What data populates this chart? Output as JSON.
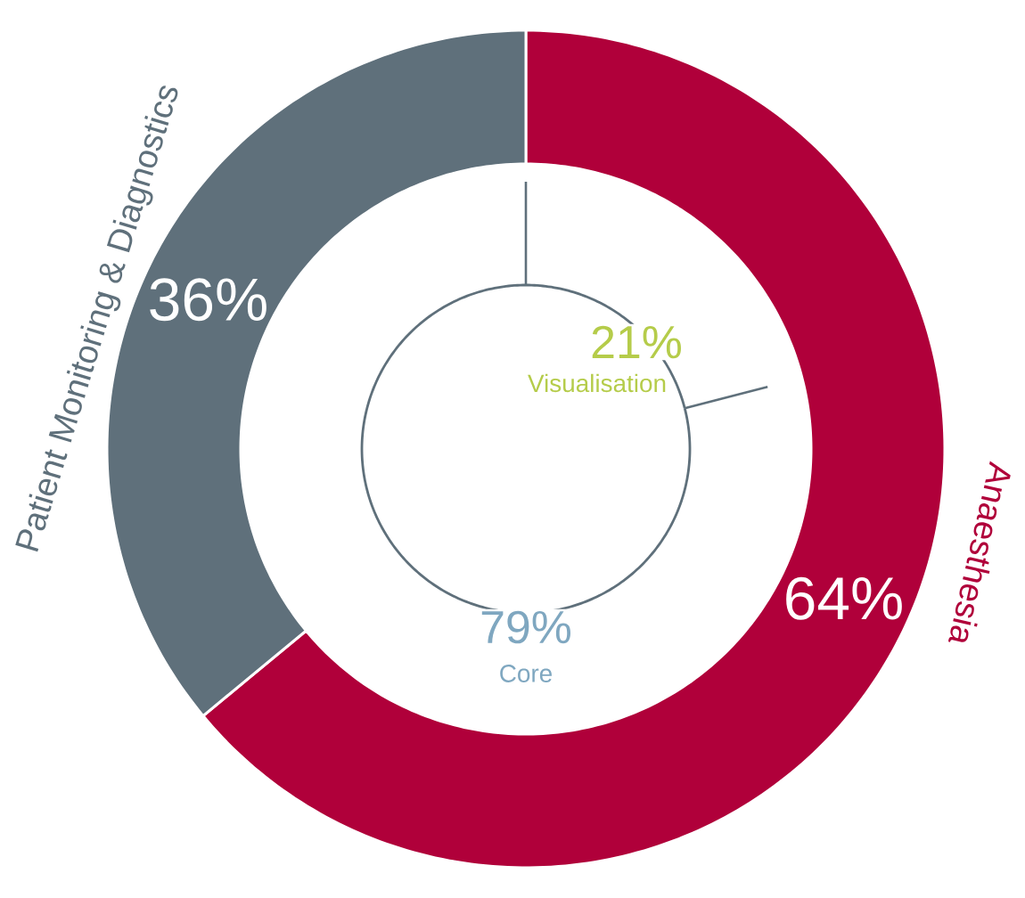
{
  "chart_data": [
    {
      "type": "donut",
      "categories": [
        "Anaesthesia",
        "Patient Monitoring & Diagnostics"
      ],
      "values": [
        64,
        36
      ],
      "colors": [
        "#b0003a",
        "#5f707b"
      ],
      "value_labels": [
        "64%",
        "36%"
      ]
    },
    {
      "type": "donut",
      "categories": [
        "Visualisation",
        "Core"
      ],
      "values": [
        21,
        79
      ],
      "colors": [
        "#5f707b",
        "#5f707b"
      ],
      "value_labels": [
        "21%",
        "79%"
      ]
    }
  ]
}
